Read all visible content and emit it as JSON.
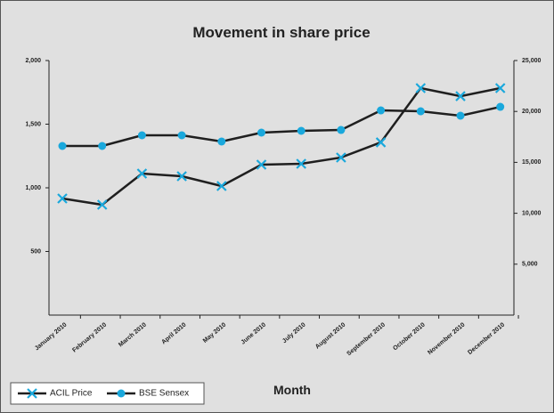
{
  "chart_data": {
    "type": "line",
    "title": "Movement in share price",
    "x_label": "Month",
    "categories": [
      "January 2010",
      "February 2010",
      "March 2010",
      "April 2010",
      "May 2010",
      "June 2010",
      "July 2010",
      "August 2010",
      "September 2010",
      "October 2010",
      "November 2010",
      "December 2010"
    ],
    "series": [
      {
        "name": "ACIL Price",
        "color": "#1f1f1f",
        "marker_color": "#1aa8dc",
        "marker": "x",
        "axis": "y",
        "values": [
          916,
          867,
          1112,
          1091,
          1014,
          1182,
          1189,
          1238,
          1357,
          1783,
          1720,
          1783
        ]
      },
      {
        "name": "BSE Sensex",
        "color": "#1f1f1f",
        "marker_color": "#1aa8dc",
        "marker": "circle",
        "axis": "y2",
        "values": [
          16608,
          16608,
          17657,
          17657,
          17045,
          17920,
          18094,
          18180,
          20100,
          20015,
          19580,
          20450
        ]
      }
    ],
    "ylim": [
      0,
      2000
    ],
    "yticks": [
      500,
      {
        "value": 1000,
        "label": "1,000"
      },
      {
        "value": 1500,
        "label": "1,500"
      },
      {
        "value": 2000,
        "label": "2,000"
      }
    ],
    "y2lim": [
      0,
      25000
    ],
    "y2ticks": [
      {
        "value": 5000,
        "label": "5,000"
      },
      {
        "value": 10000,
        "label": "10,000"
      },
      {
        "value": 15000,
        "label": "15,000"
      },
      {
        "value": 20000,
        "label": "20,000"
      },
      {
        "value": 25000,
        "label": "25,000"
      }
    ],
    "legend": "bottom-left"
  }
}
